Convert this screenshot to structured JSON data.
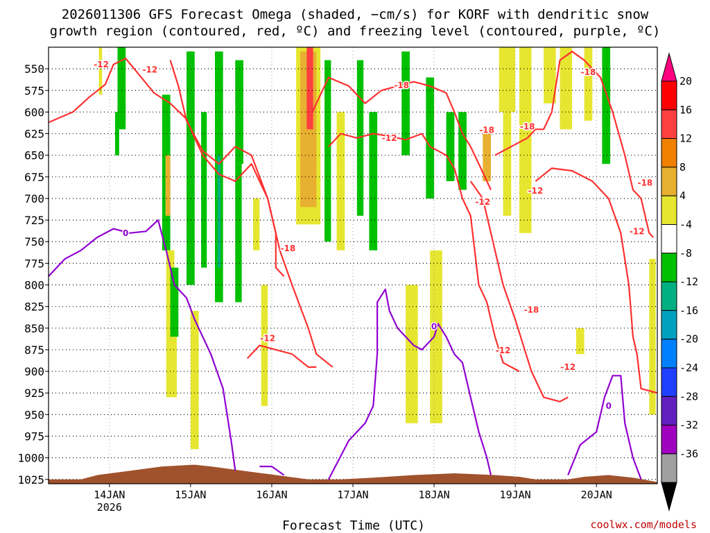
{
  "chart_data": {
    "type": "heatmap",
    "title": [
      "2026011306 GFS Forecast Omega (shaded, −cm/s) for KORF with dendritic snow",
      "growth region (contoured, red, ºC) and freezing level (contoured, purple, ºC)"
    ],
    "xlabel": "Forecast Time (UTC)",
    "credit": "coolwx.com/models",
    "x_ticks": [
      {
        "t": 0.75,
        "label": "14JAN",
        "sub": "2026"
      },
      {
        "t": 1.75,
        "label": "15JAN"
      },
      {
        "t": 2.75,
        "label": "16JAN"
      },
      {
        "t": 3.75,
        "label": "17JAN"
      },
      {
        "t": 4.75,
        "label": "18JAN"
      },
      {
        "t": 5.75,
        "label": "19JAN"
      },
      {
        "t": 6.75,
        "label": "20JAN"
      }
    ],
    "xlim": [
      0,
      7.5
    ],
    "y_levels": [
      550,
      575,
      600,
      625,
      650,
      675,
      700,
      725,
      750,
      775,
      800,
      825,
      850,
      875,
      900,
      925,
      950,
      975,
      1000,
      1025
    ],
    "ylim": [
      525,
      1030
    ],
    "colorbar": {
      "labels": [
        "20",
        "16",
        "12",
        "8",
        "4",
        "-4",
        "-8",
        "-12",
        "-16",
        "-20",
        "-24",
        "-28",
        "-32",
        "-36"
      ],
      "colors": [
        "#ff0000",
        "#ff4040",
        "#f08000",
        "#e8b030",
        "#e6e630",
        "#ffffff",
        "#00c000",
        "#00b080",
        "#00a0c0",
        "#0080ff",
        "#2040ff",
        "#6020c0",
        "#a000c0",
        "#a0a0a0"
      ],
      "top_arrow": "#ff0080",
      "bottom_arrow": "#000000"
    },
    "contours": [
      {
        "label": "-12",
        "color": "#ff3030",
        "points": [
          [
            0.0,
            612
          ],
          [
            0.3,
            600
          ],
          [
            0.5,
            583
          ],
          [
            0.7,
            568
          ],
          [
            0.8,
            545
          ],
          [
            0.95,
            538
          ],
          [
            1.1,
            555
          ],
          [
            1.3,
            578
          ],
          [
            1.5,
            590
          ],
          [
            1.7,
            608
          ],
          [
            1.8,
            630
          ],
          [
            1.9,
            650
          ],
          [
            2.1,
            672
          ],
          [
            2.3,
            680
          ],
          [
            2.5,
            660
          ],
          [
            2.6,
            680
          ],
          [
            2.7,
            700
          ],
          [
            2.85,
            760
          ],
          [
            3.0,
            800
          ],
          [
            3.2,
            850
          ],
          [
            3.3,
            880
          ],
          [
            3.5,
            895
          ]
        ]
      },
      {
        "label": "-18",
        "color": "#ff3030",
        "points": [
          [
            1.5,
            540
          ],
          [
            1.6,
            570
          ],
          [
            1.7,
            610
          ],
          [
            1.9,
            645
          ],
          [
            2.1,
            660
          ],
          [
            2.3,
            640
          ],
          [
            2.5,
            650
          ],
          [
            2.7,
            700
          ],
          [
            2.8,
            740
          ],
          [
            2.8,
            780
          ],
          [
            2.9,
            790
          ]
        ]
      },
      {
        "label": "-12",
        "color": "#ff3030",
        "points": [
          [
            2.45,
            885
          ],
          [
            2.6,
            870
          ],
          [
            2.8,
            875
          ],
          [
            3.0,
            880
          ],
          [
            3.2,
            895
          ],
          [
            3.3,
            895
          ]
        ]
      },
      {
        "label": "-18",
        "color": "#ff3030",
        "points": [
          [
            3.25,
            600
          ],
          [
            3.45,
            560
          ],
          [
            3.7,
            570
          ],
          [
            3.9,
            590
          ],
          [
            4.1,
            575
          ],
          [
            4.3,
            570
          ],
          [
            4.5,
            565
          ],
          [
            4.7,
            570
          ],
          [
            4.9,
            578
          ],
          [
            5.0,
            600
          ],
          [
            5.1,
            625
          ],
          [
            5.2,
            640
          ],
          [
            5.3,
            660
          ],
          [
            5.45,
            690
          ]
        ]
      },
      {
        "label": "-12",
        "color": "#ff3030",
        "points": [
          [
            3.45,
            640
          ],
          [
            3.6,
            625
          ],
          [
            3.8,
            630
          ],
          [
            4.0,
            625
          ],
          [
            4.2,
            628
          ],
          [
            4.4,
            632
          ],
          [
            4.6,
            625
          ],
          [
            4.7,
            640
          ],
          [
            4.9,
            650
          ],
          [
            5.0,
            665
          ],
          [
            5.1,
            700
          ],
          [
            5.2,
            720
          ],
          [
            5.3,
            800
          ],
          [
            5.4,
            820
          ],
          [
            5.5,
            860
          ],
          [
            5.6,
            890
          ],
          [
            5.7,
            895
          ],
          [
            5.8,
            900
          ]
        ]
      },
      {
        "label": "-18",
        "color": "#ff3030",
        "points": [
          [
            5.5,
            650
          ],
          [
            5.7,
            640
          ],
          [
            5.9,
            630
          ],
          [
            6.0,
            620
          ],
          [
            6.1,
            620
          ],
          [
            6.2,
            600
          ],
          [
            6.3,
            540
          ],
          [
            6.45,
            530
          ],
          [
            6.6,
            540
          ],
          [
            6.8,
            560
          ],
          [
            6.95,
            600
          ],
          [
            7.1,
            650
          ],
          [
            7.2,
            690
          ],
          [
            7.3,
            700
          ],
          [
            7.4,
            740
          ],
          [
            7.45,
            745
          ]
        ]
      },
      {
        "label": "-12",
        "color": "#ff3030",
        "points": [
          [
            5.2,
            680
          ],
          [
            5.35,
            700
          ],
          [
            5.45,
            740
          ],
          [
            5.6,
            800
          ],
          [
            5.75,
            840
          ],
          [
            5.85,
            870
          ],
          [
            5.95,
            900
          ],
          [
            6.1,
            930
          ],
          [
            6.3,
            935
          ],
          [
            6.4,
            930
          ]
        ]
      },
      {
        "label": "-12",
        "color": "#ff3030",
        "points": [
          [
            6.0,
            680
          ],
          [
            6.2,
            665
          ],
          [
            6.45,
            668
          ],
          [
            6.7,
            680
          ],
          [
            6.9,
            700
          ],
          [
            7.05,
            740
          ],
          [
            7.15,
            800
          ],
          [
            7.2,
            860
          ],
          [
            7.25,
            880
          ],
          [
            7.3,
            920
          ],
          [
            7.5,
            925
          ]
        ]
      },
      {
        "label": "0",
        "color": "#9000d0",
        "points": [
          [
            0.0,
            790
          ],
          [
            0.2,
            770
          ],
          [
            0.4,
            760
          ],
          [
            0.6,
            745
          ],
          [
            0.8,
            735
          ],
          [
            1.0,
            740
          ],
          [
            1.2,
            738
          ],
          [
            1.35,
            725
          ],
          [
            1.45,
            760
          ],
          [
            1.55,
            800
          ],
          [
            1.7,
            815
          ],
          [
            1.8,
            840
          ],
          [
            1.9,
            860
          ],
          [
            2.0,
            880
          ],
          [
            2.15,
            920
          ],
          [
            2.25,
            980
          ],
          [
            2.3,
            1015
          ]
        ]
      },
      {
        "label": "0",
        "color": "#9000d0",
        "points": [
          [
            2.6,
            1010
          ],
          [
            2.75,
            1010
          ],
          [
            2.9,
            1020
          ]
        ]
      },
      {
        "label": "0",
        "color": "#9000d0",
        "points": [
          [
            3.45,
            1025
          ],
          [
            3.7,
            980
          ],
          [
            3.9,
            960
          ],
          [
            4.0,
            940
          ],
          [
            4.05,
            880
          ],
          [
            4.05,
            820
          ],
          [
            4.15,
            805
          ],
          [
            4.2,
            830
          ],
          [
            4.3,
            850
          ],
          [
            4.5,
            870
          ],
          [
            4.6,
            875
          ],
          [
            4.75,
            860
          ],
          [
            4.8,
            845
          ],
          [
            4.9,
            860
          ],
          [
            5.0,
            880
          ],
          [
            5.1,
            890
          ],
          [
            5.2,
            930
          ],
          [
            5.3,
            970
          ],
          [
            5.4,
            1000
          ],
          [
            5.45,
            1020
          ]
        ]
      },
      {
        "label": "0",
        "color": "#9000d0",
        "points": [
          [
            6.4,
            1020
          ],
          [
            6.55,
            985
          ],
          [
            6.75,
            970
          ],
          [
            6.85,
            930
          ],
          [
            6.95,
            905
          ],
          [
            7.05,
            905
          ],
          [
            7.1,
            960
          ],
          [
            7.2,
            1000
          ],
          [
            7.3,
            1025
          ]
        ]
      }
    ],
    "contour_labels": [
      {
        "text": "-12",
        "t": 0.65,
        "p": 545,
        "color": "#ff3030"
      },
      {
        "text": "-12",
        "t": 1.25,
        "p": 551,
        "color": "#ff3030"
      },
      {
        "text": "-18",
        "t": 2.95,
        "p": 758,
        "color": "#ff3030"
      },
      {
        "text": "-12",
        "t": 2.7,
        "p": 862,
        "color": "#ff3030"
      },
      {
        "text": "-18",
        "t": 4.35,
        "p": 569,
        "color": "#ff3030"
      },
      {
        "text": "-12",
        "t": 4.2,
        "p": 630,
        "color": "#ff3030"
      },
      {
        "text": "-18",
        "t": 5.4,
        "p": 621,
        "color": "#ff3030"
      },
      {
        "text": "-12",
        "t": 5.35,
        "p": 704,
        "color": "#ff3030"
      },
      {
        "text": "-18",
        "t": 5.9,
        "p": 617,
        "color": "#ff3030"
      },
      {
        "text": "-18",
        "t": 5.95,
        "p": 829,
        "color": "#ff3030"
      },
      {
        "text": "-12",
        "t": 5.6,
        "p": 876,
        "color": "#ff3030"
      },
      {
        "text": "-12",
        "t": 6.0,
        "p": 691,
        "color": "#ff3030"
      },
      {
        "text": "-18",
        "t": 6.65,
        "p": 554,
        "color": "#ff3030"
      },
      {
        "text": "-12",
        "t": 6.4,
        "p": 895,
        "color": "#ff3030"
      },
      {
        "text": "-18",
        "t": 7.35,
        "p": 682,
        "color": "#ff3030"
      },
      {
        "text": "-12",
        "t": 7.25,
        "p": 738,
        "color": "#ff3030"
      },
      {
        "text": "0",
        "t": 0.95,
        "p": 740,
        "color": "#9000d0"
      },
      {
        "text": "0",
        "t": 4.75,
        "p": 848,
        "color": "#9000d0"
      },
      {
        "text": "0",
        "t": 6.9,
        "p": 940,
        "color": "#9000d0"
      }
    ],
    "omega_cells": [
      {
        "t0": 0.62,
        "t1": 0.66,
        "p0": 525,
        "p1": 580,
        "color": "#e6e630"
      },
      {
        "t0": 0.85,
        "t1": 0.95,
        "p0": 525,
        "p1": 620,
        "color": "#00c000"
      },
      {
        "t0": 0.82,
        "t1": 0.87,
        "p0": 600,
        "p1": 650,
        "color": "#00c000"
      },
      {
        "t0": 1.4,
        "t1": 1.5,
        "p0": 580,
        "p1": 760,
        "color": "#00c000"
      },
      {
        "t0": 1.44,
        "t1": 1.5,
        "p0": 650,
        "p1": 720,
        "color": "#e8b030"
      },
      {
        "t0": 1.45,
        "t1": 1.55,
        "p0": 760,
        "p1": 930,
        "color": "#e6e630"
      },
      {
        "t0": 1.5,
        "t1": 1.6,
        "p0": 780,
        "p1": 860,
        "color": "#00c000"
      },
      {
        "t0": 1.52,
        "t1": 1.58,
        "p0": 860,
        "p1": 930,
        "color": "#e6e630"
      },
      {
        "t0": 1.7,
        "t1": 1.8,
        "p0": 530,
        "p1": 800,
        "color": "#00c000"
      },
      {
        "t0": 1.75,
        "t1": 1.85,
        "p0": 830,
        "p1": 990,
        "color": "#e6e630"
      },
      {
        "t0": 1.88,
        "t1": 1.95,
        "p0": 600,
        "p1": 780,
        "color": "#00c000"
      },
      {
        "t0": 2.05,
        "t1": 2.15,
        "p0": 530,
        "p1": 820,
        "color": "#00c000"
      },
      {
        "t0": 2.08,
        "t1": 2.12,
        "p0": 650,
        "p1": 780,
        "color": "#00b080"
      },
      {
        "t0": 2.3,
        "t1": 2.4,
        "p0": 540,
        "p1": 660,
        "color": "#00c000"
      },
      {
        "t0": 2.3,
        "t1": 2.38,
        "p0": 660,
        "p1": 820,
        "color": "#00c000"
      },
      {
        "t0": 2.52,
        "t1": 2.6,
        "p0": 700,
        "p1": 760,
        "color": "#e6e630"
      },
      {
        "t0": 2.62,
        "t1": 2.7,
        "p0": 800,
        "p1": 940,
        "color": "#e6e630"
      },
      {
        "t0": 3.05,
        "t1": 3.35,
        "p0": 525,
        "p1": 730,
        "color": "#e6e630"
      },
      {
        "t0": 3.1,
        "t1": 3.3,
        "p0": 530,
        "p1": 710,
        "color": "#e8b030"
      },
      {
        "t0": 3.18,
        "t1": 3.26,
        "p0": 525,
        "p1": 620,
        "color": "#ff4040"
      },
      {
        "t0": 3.4,
        "t1": 3.48,
        "p0": 540,
        "p1": 750,
        "color": "#00c000"
      },
      {
        "t0": 3.55,
        "t1": 3.65,
        "p0": 600,
        "p1": 760,
        "color": "#e6e630"
      },
      {
        "t0": 3.8,
        "t1": 3.88,
        "p0": 540,
        "p1": 720,
        "color": "#00c000"
      },
      {
        "t0": 3.95,
        "t1": 4.05,
        "p0": 600,
        "p1": 760,
        "color": "#00c000"
      },
      {
        "t0": 4.35,
        "t1": 4.45,
        "p0": 530,
        "p1": 650,
        "color": "#00c000"
      },
      {
        "t0": 4.4,
        "t1": 4.55,
        "p0": 800,
        "p1": 960,
        "color": "#e6e630"
      },
      {
        "t0": 4.65,
        "t1": 4.75,
        "p0": 560,
        "p1": 700,
        "color": "#00c000"
      },
      {
        "t0": 4.7,
        "t1": 4.85,
        "p0": 760,
        "p1": 960,
        "color": "#e6e630"
      },
      {
        "t0": 4.9,
        "t1": 5.0,
        "p0": 600,
        "p1": 680,
        "color": "#00c000"
      },
      {
        "t0": 5.05,
        "t1": 5.15,
        "p0": 600,
        "p1": 690,
        "color": "#00c000"
      },
      {
        "t0": 5.35,
        "t1": 5.45,
        "p0": 620,
        "p1": 680,
        "color": "#e8b030"
      },
      {
        "t0": 5.55,
        "t1": 5.75,
        "p0": 525,
        "p1": 600,
        "color": "#e6e630"
      },
      {
        "t0": 5.6,
        "t1": 5.7,
        "p0": 600,
        "p1": 720,
        "color": "#e6e630"
      },
      {
        "t0": 5.8,
        "t1": 5.95,
        "p0": 525,
        "p1": 740,
        "color": "#e6e630"
      },
      {
        "t0": 6.1,
        "t1": 6.25,
        "p0": 525,
        "p1": 590,
        "color": "#e6e630"
      },
      {
        "t0": 6.3,
        "t1": 6.45,
        "p0": 525,
        "p1": 620,
        "color": "#e6e630"
      },
      {
        "t0": 6.6,
        "t1": 6.7,
        "p0": 525,
        "p1": 610,
        "color": "#e6e630"
      },
      {
        "t0": 6.82,
        "t1": 6.92,
        "p0": 525,
        "p1": 660,
        "color": "#00c000"
      },
      {
        "t0": 6.5,
        "t1": 6.6,
        "p0": 850,
        "p1": 880,
        "color": "#e6e630"
      },
      {
        "t0": 7.4,
        "t1": 7.48,
        "p0": 770,
        "p1": 950,
        "color": "#e6e630"
      }
    ],
    "terrain_color": "#a0522d",
    "terrain": [
      [
        0.0,
        1025
      ],
      [
        0.4,
        1025
      ],
      [
        0.6,
        1020
      ],
      [
        1.0,
        1015
      ],
      [
        1.4,
        1010
      ],
      [
        1.8,
        1008
      ],
      [
        2.0,
        1010
      ],
      [
        2.4,
        1015
      ],
      [
        2.8,
        1020
      ],
      [
        3.2,
        1025
      ],
      [
        3.6,
        1025
      ],
      [
        4.0,
        1023
      ],
      [
        4.5,
        1020
      ],
      [
        5.0,
        1018
      ],
      [
        5.5,
        1020
      ],
      [
        5.8,
        1022
      ],
      [
        6.0,
        1025
      ],
      [
        6.4,
        1025
      ],
      [
        6.6,
        1022
      ],
      [
        6.9,
        1020
      ],
      [
        7.2,
        1023
      ],
      [
        7.5,
        1028
      ]
    ]
  }
}
